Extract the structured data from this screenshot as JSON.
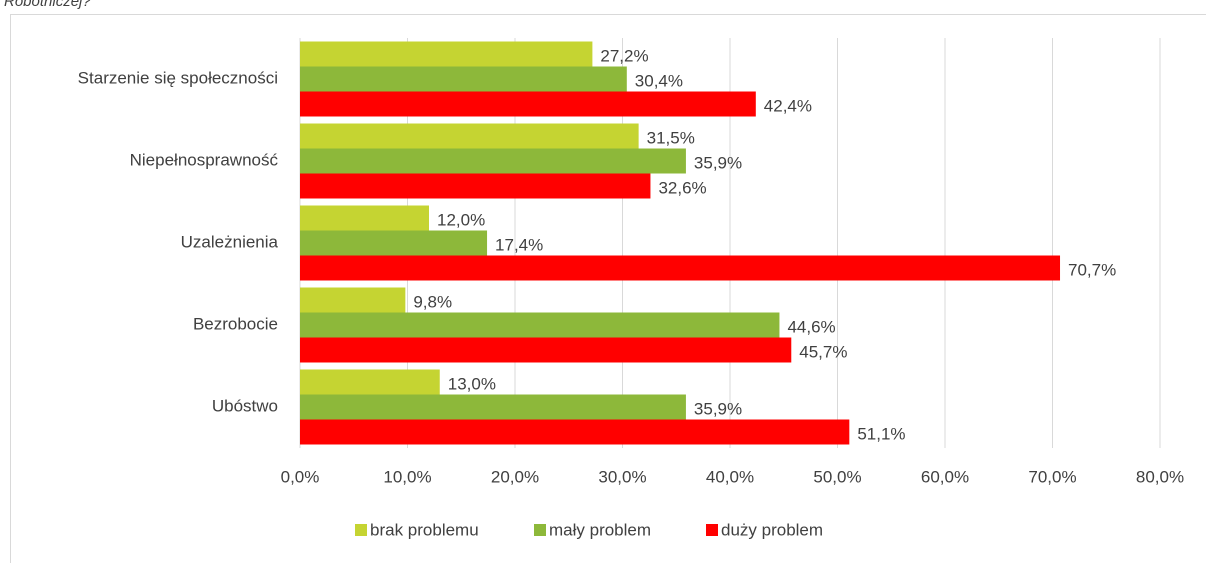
{
  "chart_data": {
    "type": "hbar",
    "title": "Robotniczej?",
    "categories": [
      "Starzenie się społeczności",
      "Niepełnosprawność",
      "Uzależnienia",
      "Bezrobocie",
      "Ubóstwo"
    ],
    "series": [
      {
        "name": "brak problemu",
        "color": "#c5d432",
        "values": [
          27.2,
          31.5,
          12.0,
          9.8,
          13.0
        ],
        "value_labels": [
          "27,2%",
          "31,5%",
          "12,0%",
          "9,8%",
          "13,0%"
        ]
      },
      {
        "name": "mały problem",
        "color": "#8db83a",
        "values": [
          30.4,
          35.9,
          17.4,
          44.6,
          35.9
        ],
        "value_labels": [
          "30,4%",
          "35,9%",
          "17,4%",
          "44,6%",
          "35,9%"
        ]
      },
      {
        "name": "duży problem",
        "color": "#ff0000",
        "values": [
          42.4,
          32.6,
          70.7,
          45.7,
          51.1
        ],
        "value_labels": [
          "42,4%",
          "32,6%",
          "70,7%",
          "45,7%",
          "51,1%"
        ]
      }
    ],
    "xlim": [
      0,
      80
    ],
    "xticks": [
      {
        "value": 0,
        "label": "0,0%"
      },
      {
        "value": 10,
        "label": "10,0%"
      },
      {
        "value": 20,
        "label": "20,0%"
      },
      {
        "value": 30,
        "label": "30,0%"
      },
      {
        "value": 40,
        "label": "40,0%"
      },
      {
        "value": 50,
        "label": "50,0%"
      },
      {
        "value": 60,
        "label": "60,0%"
      },
      {
        "value": 70,
        "label": "70,0%"
      },
      {
        "value": 80,
        "label": "80,0%"
      }
    ],
    "grid": true,
    "legend": "bottom"
  }
}
